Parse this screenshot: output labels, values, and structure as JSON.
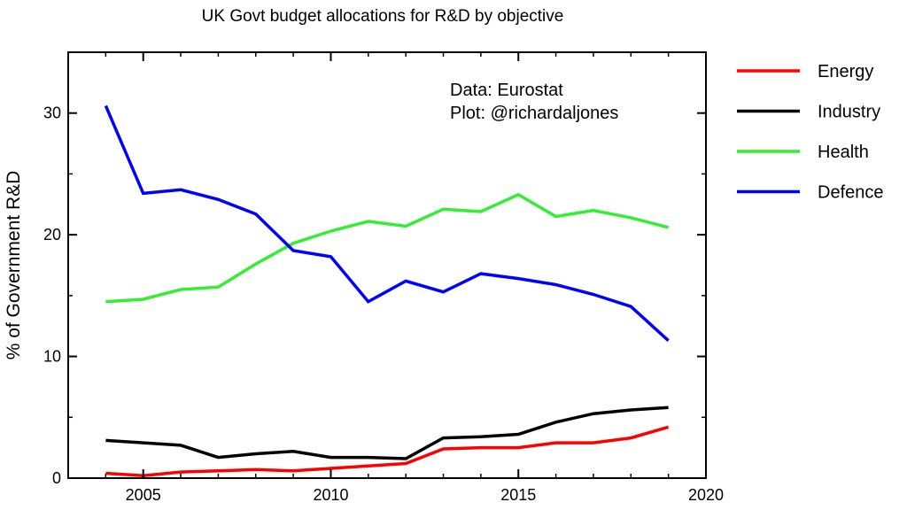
{
  "chart_data": {
    "type": "line",
    "title": "UK Govt budget allocations for R&D by objective",
    "xlabel": "",
    "ylabel": "% of Government R&D",
    "xlim": [
      2003,
      2020
    ],
    "ylim": [
      0,
      35
    ],
    "xticks": [
      2005,
      2010,
      2015,
      2020
    ],
    "yticks": [
      0,
      10,
      20,
      30
    ],
    "grid": false,
    "legend_position": "right",
    "annotations": [
      "Data: Eurostat",
      "Plot: @richardaljones"
    ],
    "x": [
      2004,
      2005,
      2006,
      2007,
      2008,
      2009,
      2010,
      2011,
      2012,
      2013,
      2014,
      2015,
      2016,
      2017,
      2018,
      2019
    ],
    "series": [
      {
        "name": "Energy",
        "color": "#ff0000",
        "values": [
          0.4,
          0.2,
          0.5,
          0.6,
          0.7,
          0.6,
          0.8,
          1.0,
          1.2,
          2.4,
          2.5,
          2.5,
          2.9,
          2.9,
          3.3,
          4.2
        ]
      },
      {
        "name": "Industry",
        "color": "#000000",
        "values": [
          3.1,
          2.9,
          2.7,
          1.7,
          2.0,
          2.2,
          1.7,
          1.7,
          1.6,
          3.3,
          3.4,
          3.6,
          4.6,
          5.3,
          5.6,
          5.8
        ]
      },
      {
        "name": "Health",
        "color": "#33ee33",
        "values": [
          14.5,
          14.7,
          15.5,
          15.7,
          17.6,
          19.3,
          20.3,
          21.1,
          20.7,
          22.1,
          21.9,
          23.3,
          21.5,
          22.0,
          21.4,
          20.6
        ]
      },
      {
        "name": "Defence",
        "color": "#0000ff",
        "values": [
          30.6,
          23.4,
          23.7,
          22.9,
          21.7,
          18.7,
          18.2,
          14.5,
          16.2,
          15.3,
          16.8,
          16.4,
          15.9,
          15.1,
          14.1,
          11.3
        ]
      }
    ]
  }
}
